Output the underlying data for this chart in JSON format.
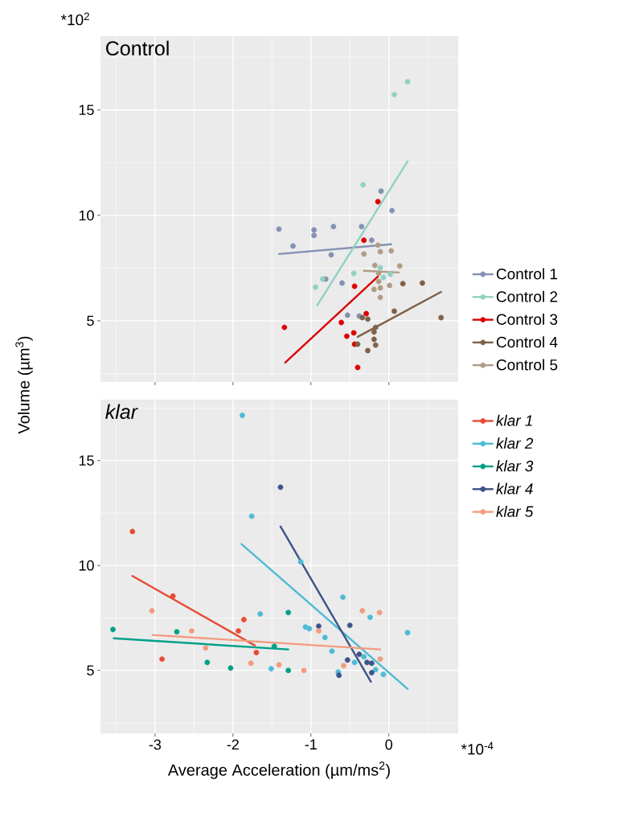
{
  "chart_data": [
    {
      "type": "scatter",
      "title": "Control",
      "ylabel": "Volume (µm$^{3}$)",
      "annotations": [
        "*10$^{2}$"
      ],
      "xlim": [
        -3.7,
        0.89
      ],
      "ylim": [
        2.1,
        18.5
      ],
      "xticks": [
        -3,
        -2,
        -1,
        0
      ],
      "yticks": [
        5,
        10,
        15
      ],
      "tick_labels": "y",
      "grid": true,
      "legend": "right",
      "marker": "circle",
      "series": [
        {
          "name": "Control 1",
          "color": "#8491b4",
          "x": [
            -1.41,
            -0.96,
            -0.96,
            -0.71,
            -0.35,
            -1.23,
            -0.74,
            -0.22,
            -0.81,
            -0.6,
            -0.53,
            -0.38,
            -0.1,
            0.04
          ],
          "values": [
            9.35,
            9.31,
            9.05,
            9.47,
            9.47,
            8.55,
            8.13,
            8.82,
            6.98,
            6.79,
            5.27,
            5.23,
            11.15,
            10.23
          ]
        },
        {
          "name": "Control 2",
          "color": "#91d1c2",
          "x": [
            0.24,
            0.07,
            -0.33,
            -0.85,
            -0.94,
            -0.45,
            -0.11,
            0.02,
            -0.07
          ],
          "values": [
            16.34,
            15.73,
            11.45,
            6.98,
            6.6,
            7.25,
            7.52,
            7.21,
            7.06
          ]
        },
        {
          "name": "Control 3",
          "color": "#dc0000",
          "x": [
            -0.32,
            -0.29,
            -0.61,
            -0.44,
            -1.34,
            -0.54,
            -0.45,
            -0.44,
            -0.4,
            -0.14
          ],
          "values": [
            8.82,
            5.34,
            4.92,
            6.64,
            4.69,
            4.27,
            4.43,
            3.89,
            2.79,
            10.65
          ]
        },
        {
          "name": "Control 4",
          "color": "#7e6148",
          "x": [
            -0.34,
            -0.27,
            0.07,
            0.18,
            0.43,
            0.67,
            -0.17,
            -0.19,
            -0.17,
            -0.27,
            -0.4,
            -0.19
          ],
          "values": [
            5.15,
            5.08,
            5.46,
            6.76,
            6.79,
            5.15,
            4.69,
            4.12,
            3.85,
            3.59,
            3.89,
            4.47
          ]
        },
        {
          "name": "Control 5",
          "color": "#b09c85",
          "x": [
            -0.32,
            -0.11,
            0.03,
            -0.18,
            0.14,
            -0.13,
            -0.13,
            -0.19,
            -0.11,
            0.01,
            -0.11,
            -0.14
          ],
          "values": [
            8.17,
            8.28,
            8.32,
            7.63,
            7.6,
            7.25,
            6.87,
            6.49,
            6.56,
            6.68,
            6.11,
            8.59
          ]
        },
        {
          "type": "line",
          "marker": "none",
          "color": "#8491b4",
          "x": [
            -1.41,
            0.03
          ],
          "values": [
            8.17,
            8.63
          ]
        },
        {
          "type": "line",
          "marker": "none",
          "color": "#91d1c2",
          "x": [
            -0.92,
            0.24
          ],
          "values": [
            5.73,
            12.56
          ]
        },
        {
          "type": "line",
          "marker": "none",
          "color": "#dc0000",
          "x": [
            -1.33,
            -0.14
          ],
          "values": [
            3.02,
            7.1
          ]
        },
        {
          "type": "line",
          "marker": "none",
          "color": "#7e6148",
          "x": [
            -0.4,
            0.67
          ],
          "values": [
            4.24,
            6.37
          ]
        },
        {
          "type": "line",
          "marker": "none",
          "color": "#b09c85",
          "x": [
            -0.32,
            0.13
          ],
          "values": [
            7.37,
            7.29
          ]
        }
      ]
    },
    {
      "type": "scatter",
      "title": "klar",
      "xlabel": "Average Acceleration (µm/ms$^{2}$)",
      "annotations": [
        "*10$^{-4}$"
      ],
      "xlim": [
        -3.7,
        0.89
      ],
      "ylim": [
        2.0,
        17.9
      ],
      "xticks": [
        -3,
        -2,
        -1,
        0
      ],
      "yticks": [
        5,
        10,
        15
      ],
      "grid": true,
      "legend": "right",
      "marker": "circle",
      "series": [
        {
          "name": "klar 1",
          "color": "#e64b35",
          "x": [
            -3.29,
            -2.77,
            -1.86,
            -1.93,
            -2.91,
            -1.7
          ],
          "values": [
            11.62,
            8.54,
            7.42,
            6.88,
            5.54,
            5.85
          ]
        },
        {
          "name": "klar 2",
          "color": "#4dbbd5",
          "x": [
            -1.88,
            -1.76,
            -1.65,
            -1.51,
            -1.13,
            -0.59,
            -0.24,
            -1.07,
            -1.02,
            -0.82,
            -0.73,
            -0.44,
            -0.32,
            -0.17,
            -0.07,
            0.24,
            -0.65
          ],
          "values": [
            17.15,
            12.35,
            7.69,
            5.08,
            10.17,
            8.49,
            7.53,
            7.07,
            6.99,
            6.57,
            5.92,
            5.38,
            5.65,
            5.04,
            4.81,
            6.8,
            4.92
          ]
        },
        {
          "name": "klar 3",
          "color": "#00a087",
          "x": [
            -3.54,
            -2.72,
            -2.33,
            -2.03,
            -1.29,
            -1.29,
            -1.47
          ],
          "values": [
            6.95,
            6.84,
            5.38,
            5.11,
            7.76,
            5.0,
            6.15
          ]
        },
        {
          "name": "klar 4",
          "color": "#3c5488",
          "x": [
            -1.39,
            -0.9,
            -0.5,
            -0.53,
            -0.38,
            -0.28,
            -0.22,
            -0.22,
            -0.64
          ],
          "values": [
            13.73,
            7.11,
            7.15,
            5.5,
            5.77,
            5.38,
            5.34,
            4.89,
            4.77
          ]
        },
        {
          "name": "klar 5",
          "color": "#f39b7f",
          "x": [
            -3.04,
            -2.53,
            -2.35,
            -1.77,
            -1.41,
            -1.09,
            -0.9,
            -0.34,
            -0.12,
            -0.58,
            -0.11
          ],
          "values": [
            7.84,
            6.88,
            6.07,
            5.34,
            5.27,
            5.0,
            6.88,
            7.84,
            7.76,
            5.23,
            5.54
          ]
        },
        {
          "type": "line",
          "marker": "none",
          "color": "#e64b35",
          "x": [
            -3.29,
            -1.72
          ],
          "values": [
            9.5,
            6.19
          ]
        },
        {
          "type": "line",
          "marker": "none",
          "color": "#4dbbd5",
          "x": [
            -1.89,
            0.24
          ],
          "values": [
            11.02,
            4.12
          ]
        },
        {
          "type": "line",
          "marker": "none",
          "color": "#00a087",
          "x": [
            -3.53,
            -1.29
          ],
          "values": [
            6.53,
            6.0
          ]
        },
        {
          "type": "line",
          "marker": "none",
          "color": "#3c5488",
          "x": [
            -1.39,
            -0.23
          ],
          "values": [
            11.86,
            4.46
          ]
        },
        {
          "type": "line",
          "marker": "none",
          "color": "#f39b7f",
          "x": [
            -3.03,
            -0.11
          ],
          "values": [
            6.69,
            6.0
          ]
        }
      ]
    }
  ]
}
